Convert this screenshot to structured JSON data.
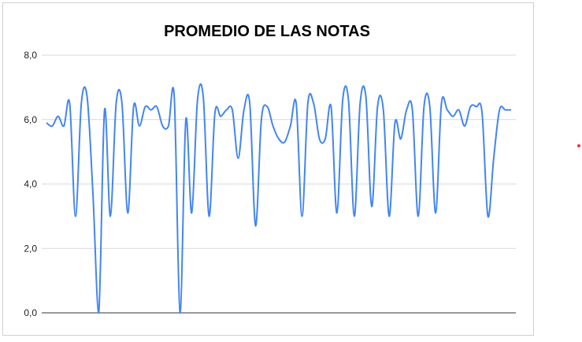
{
  "colors": {
    "series_line": "#4285f4",
    "gridline": "#d9d9d9",
    "axis_text": "#222222",
    "title_text": "#000000",
    "stray_dot": "#e53935"
  },
  "chart_data": {
    "type": "line",
    "title": "PROMEDIO DE LAS NOTAS",
    "xlabel": "",
    "ylabel": "",
    "ylim": [
      0,
      8
    ],
    "yticks": [
      "0,0",
      "2,0",
      "4,0",
      "6,0",
      "8,0"
    ],
    "grid": true,
    "legend": "none",
    "smooth": true,
    "series": [
      {
        "values": [
          5.9,
          5.8,
          6.1,
          5.8,
          6.5,
          3.0,
          6.5,
          6.7,
          3.7,
          0.0,
          6.3,
          3.0,
          6.5,
          6.5,
          3.1,
          6.4,
          5.8,
          6.4,
          6.3,
          6.4,
          5.8,
          5.8,
          6.7,
          0.0,
          6.0,
          3.1,
          6.6,
          6.7,
          3.0,
          6.2,
          6.1,
          6.3,
          6.3,
          4.8,
          6.3,
          6.5,
          2.7,
          6.0,
          6.4,
          5.8,
          5.4,
          5.3,
          5.8,
          6.5,
          3.0,
          6.5,
          6.5,
          5.4,
          5.4,
          6.4,
          3.1,
          6.6,
          6.6,
          3.0,
          6.5,
          6.7,
          3.3,
          6.4,
          6.3,
          3.0,
          5.9,
          5.4,
          6.3,
          6.3,
          3.0,
          6.4,
          6.4,
          3.1,
          6.5,
          6.3,
          6.1,
          6.3,
          5.8,
          6.4,
          6.4,
          6.2,
          3.0,
          4.8,
          6.3,
          6.3,
          6.3
        ]
      }
    ]
  }
}
